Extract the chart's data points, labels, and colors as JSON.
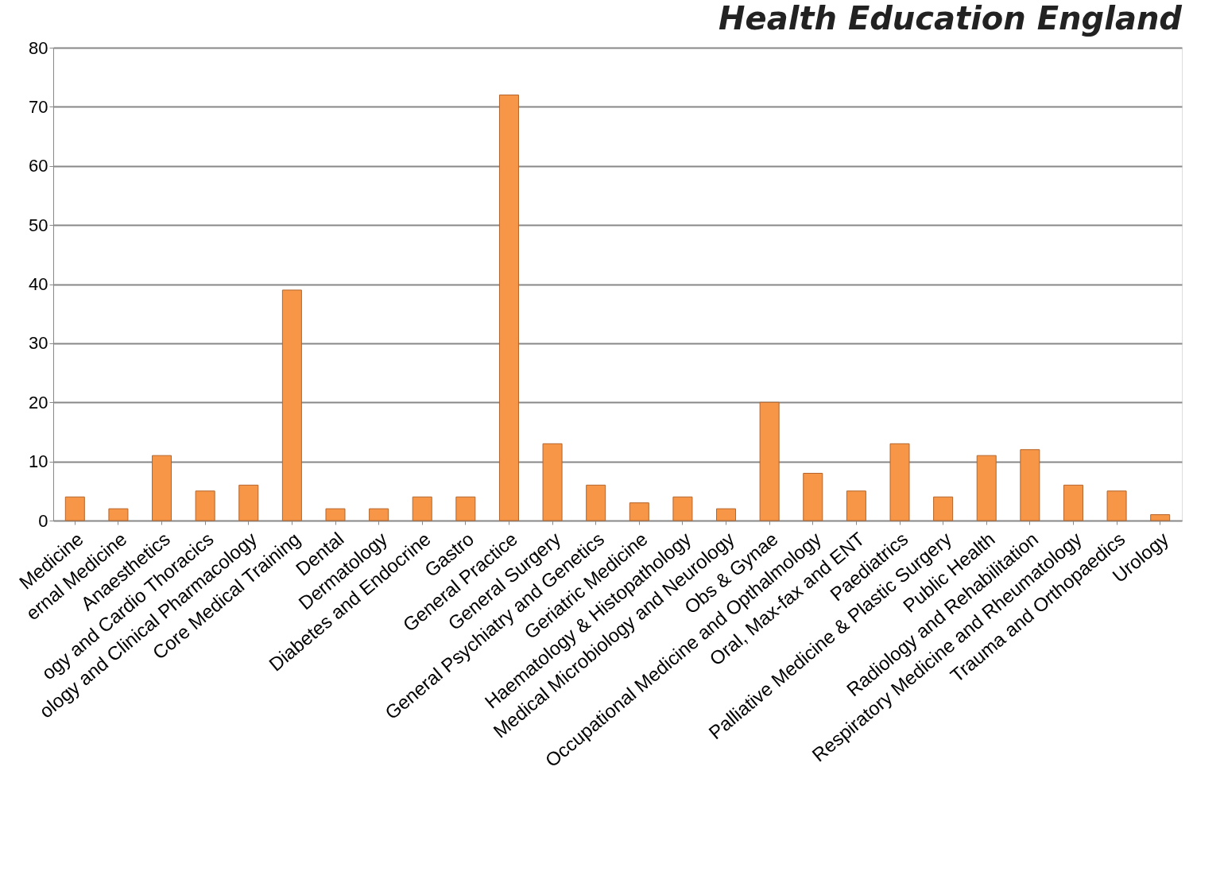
{
  "chart_data": {
    "type": "bar",
    "title": "Health Education England",
    "categories": [
      "Medicine",
      "ernal Medicine",
      "Anaesthetics",
      "ogy and Cardio Thoracics",
      "ology and Clinical Pharmacology",
      "Core Medical Training",
      "Dental",
      "Dermatology",
      "Diabetes and Endocrine",
      "Gastro",
      "General Practice",
      "General Surgery",
      "General Psychiatry  and Genetics",
      "Geriatric Medicine",
      "Haematology & Histopathology",
      "Medical Microbiology and Neurology",
      "Obs & Gynae",
      "Occupational Medicine and Opthalmology",
      "Oral, Max-fax and ENT",
      "Paediatrics",
      "Palliative Medicine & Plastic Surgery",
      "Public Health",
      "Radiology and Rehabilitation",
      "Respiratory Medicine and Rheumatology",
      "Trauma and Orthopaedics",
      "Urology"
    ],
    "values": [
      4,
      2,
      11,
      5,
      6,
      39,
      2,
      2,
      4,
      4,
      72,
      13,
      6,
      3,
      4,
      2,
      20,
      8,
      5,
      13,
      4,
      11,
      12,
      6,
      5,
      1
    ],
    "color": "#f79646",
    "ylim": [
      0,
      80
    ],
    "yticks": [
      0,
      10,
      20,
      30,
      40,
      50,
      60,
      70,
      80
    ],
    "grid": "y"
  }
}
